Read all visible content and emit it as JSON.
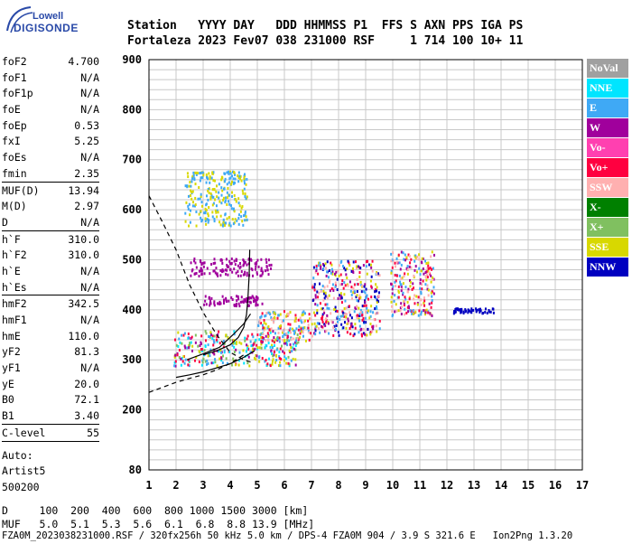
{
  "logo": {
    "line1": "Lowell",
    "line2": "DIGISONDE"
  },
  "header": {
    "row1": "Station   YYYY DAY   DDD HHMMSS P1  FFS S AXN PPS IGA PS",
    "row2": "Fortaleza 2023 Fev07 038 231000 RSF     1 714 100 10+ 11"
  },
  "params": {
    "group1": [
      {
        "label": "foF2",
        "value": "4.700"
      },
      {
        "label": "foF1",
        "value": "N/A"
      },
      {
        "label": "foF1p",
        "value": "N/A"
      },
      {
        "label": "foE",
        "value": "N/A"
      },
      {
        "label": "foEp",
        "value": "0.53"
      },
      {
        "label": "fxI",
        "value": "5.25"
      },
      {
        "label": "foEs",
        "value": "N/A"
      },
      {
        "label": "fmin",
        "value": "2.35"
      }
    ],
    "group2": [
      {
        "label": "MUF(D)",
        "value": "13.94"
      },
      {
        "label": "M(D)",
        "value": "2.97"
      },
      {
        "label": "D",
        "value": "N/A"
      }
    ],
    "group3": [
      {
        "label": "h`F",
        "value": "310.0"
      },
      {
        "label": "h`F2",
        "value": "310.0"
      },
      {
        "label": "h`E",
        "value": "N/A"
      },
      {
        "label": "h`Es",
        "value": "N/A"
      }
    ],
    "group4": [
      {
        "label": "hmF2",
        "value": "342.5"
      },
      {
        "label": "hmF1",
        "value": "N/A"
      },
      {
        "label": "hmE",
        "value": "110.0"
      },
      {
        "label": "yF2",
        "value": "81.3"
      },
      {
        "label": "yF1",
        "value": "N/A"
      },
      {
        "label": "yE",
        "value": "20.0"
      },
      {
        "label": "B0",
        "value": "72.1"
      },
      {
        "label": "B1",
        "value": "3.40"
      }
    ],
    "clevel": {
      "label": "C-level",
      "value": "55"
    },
    "auto": [
      "Auto:",
      "Artist5",
      "500200"
    ]
  },
  "legend": [
    {
      "label": "NoVal",
      "color": "#a0a0a0",
      "text_color": "#ffffff"
    },
    {
      "label": "NNE",
      "color": "#00e5ff",
      "text_color": "#ffffff"
    },
    {
      "label": "E",
      "color": "#3fa9f5",
      "text_color": "#ffffff"
    },
    {
      "label": "W",
      "color": "#a0009c",
      "text_color": "#ffffff"
    },
    {
      "label": "Vo-",
      "color": "#ff40b0",
      "text_color": "#ffffff"
    },
    {
      "label": "Vo+",
      "color": "#ff0040",
      "text_color": "#ffffff"
    },
    {
      "label": "SSW",
      "color": "#ffb0b0",
      "text_color": "#ffffff"
    },
    {
      "label": "X-",
      "color": "#008000",
      "text_color": "#ffffff"
    },
    {
      "label": "X+",
      "color": "#80c060",
      "text_color": "#ffffff"
    },
    {
      "label": "SSE",
      "color": "#d8d800",
      "text_color": "#ffffff"
    },
    {
      "label": "NNW",
      "color": "#0000c0",
      "text_color": "#ffffff"
    }
  ],
  "footer": {
    "row1": "D     100  200  400  600  800 1000 1500 3000 [km]",
    "row2": "MUF   5.0  5.1  5.3  5.6  6.1  6.8  8.8 13.9 [MHz]",
    "row3": "FZA0M_2023038231000.RSF / 320fx256h 50 kHz 5.0 km / DPS-4 FZA0M 904 / 3.9 S 321.6 E   Ion2Png 1.3.20"
  },
  "chart_data": {
    "type": "scatter",
    "xlim": [
      1,
      17
    ],
    "ylim": [
      80,
      900
    ],
    "x_ticks": [
      1,
      2,
      3,
      4,
      5,
      6,
      7,
      8,
      9,
      10,
      11,
      12,
      13,
      14,
      15,
      16,
      17
    ],
    "y_ticks": [
      80,
      200,
      300,
      400,
      500,
      600,
      700,
      800,
      900
    ],
    "grid": true,
    "clusters": [
      {
        "name": "F-trace main",
        "x": [
          1.9,
          6.5
        ],
        "y": [
          290,
          360
        ],
        "colors": [
          "#3fa9f5",
          "#ff0040",
          "#a0009c",
          "#d8d800",
          "#80c060",
          "#00e5ff"
        ]
      },
      {
        "name": "F-trace upper",
        "x": [
          5.0,
          7.0
        ],
        "y": [
          340,
          400
        ],
        "colors": [
          "#3fa9f5",
          "#ff0040",
          "#d8d800",
          "#ffb0b0"
        ]
      },
      {
        "name": "W band 490",
        "x": [
          2.5,
          5.5
        ],
        "y": [
          470,
          505
        ],
        "colors": [
          "#a0009c"
        ]
      },
      {
        "name": "W band 420",
        "x": [
          3.0,
          5.2
        ],
        "y": [
          410,
          430
        ],
        "colors": [
          "#a0009c"
        ]
      },
      {
        "name": "Upper branch",
        "x": [
          2.3,
          4.6
        ],
        "y": [
          570,
          680
        ],
        "colors": [
          "#d8d800",
          "#3fa9f5"
        ]
      },
      {
        "name": "Spread 7-9",
        "x": [
          7.0,
          9.5
        ],
        "y": [
          350,
          500
        ],
        "colors": [
          "#3fa9f5",
          "#ff0040",
          "#a0009c",
          "#d8d800",
          "#ffb0b0",
          "#0000c0"
        ]
      },
      {
        "name": "Spread 10-11",
        "x": [
          9.9,
          11.5
        ],
        "y": [
          390,
          520
        ],
        "colors": [
          "#ffb0b0",
          "#d8d800",
          "#3fa9f5",
          "#ff0040",
          "#a0009c"
        ]
      },
      {
        "name": "Low x-mode",
        "x": [
          12.2,
          13.7
        ],
        "y": [
          395,
          405
        ],
        "colors": [
          "#0000c0"
        ]
      }
    ],
    "curves": [
      {
        "name": "profile",
        "points": [
          [
            3.0,
            310
          ],
          [
            3.5,
            318
          ],
          [
            4.0,
            330
          ],
          [
            4.3,
            345
          ],
          [
            4.5,
            365
          ],
          [
            4.6,
            390
          ],
          [
            4.65,
            420
          ],
          [
            4.7,
            470
          ],
          [
            4.72,
            520
          ]
        ]
      },
      {
        "name": "profile-x",
        "points": [
          [
            2.4,
            300
          ],
          [
            3.0,
            312
          ],
          [
            3.6,
            325
          ],
          [
            4.1,
            350
          ],
          [
            4.5,
            372
          ],
          [
            4.75,
            392
          ]
        ]
      },
      {
        "name": "dashed-upper",
        "points": [
          [
            1.0,
            628
          ],
          [
            1.5,
            575
          ],
          [
            2.0,
            520
          ],
          [
            2.5,
            450
          ],
          [
            3.0,
            395
          ],
          [
            3.5,
            350
          ],
          [
            4.0,
            315
          ],
          [
            4.5,
            300
          ],
          [
            4.8,
            295
          ]
        ]
      },
      {
        "name": "dashed-lower",
        "points": [
          [
            1.0,
            235
          ],
          [
            1.5,
            245
          ],
          [
            2.0,
            255
          ],
          [
            2.5,
            263
          ],
          [
            3.0,
            270
          ],
          [
            3.5,
            280
          ],
          [
            4.0,
            293
          ],
          [
            4.5,
            310
          ]
        ]
      },
      {
        "name": "lower-solid",
        "points": [
          [
            2.0,
            265
          ],
          [
            2.5,
            270
          ],
          [
            3.0,
            276
          ],
          [
            3.5,
            284
          ],
          [
            4.0,
            292
          ],
          [
            4.5,
            305
          ],
          [
            4.9,
            318
          ]
        ]
      }
    ]
  }
}
